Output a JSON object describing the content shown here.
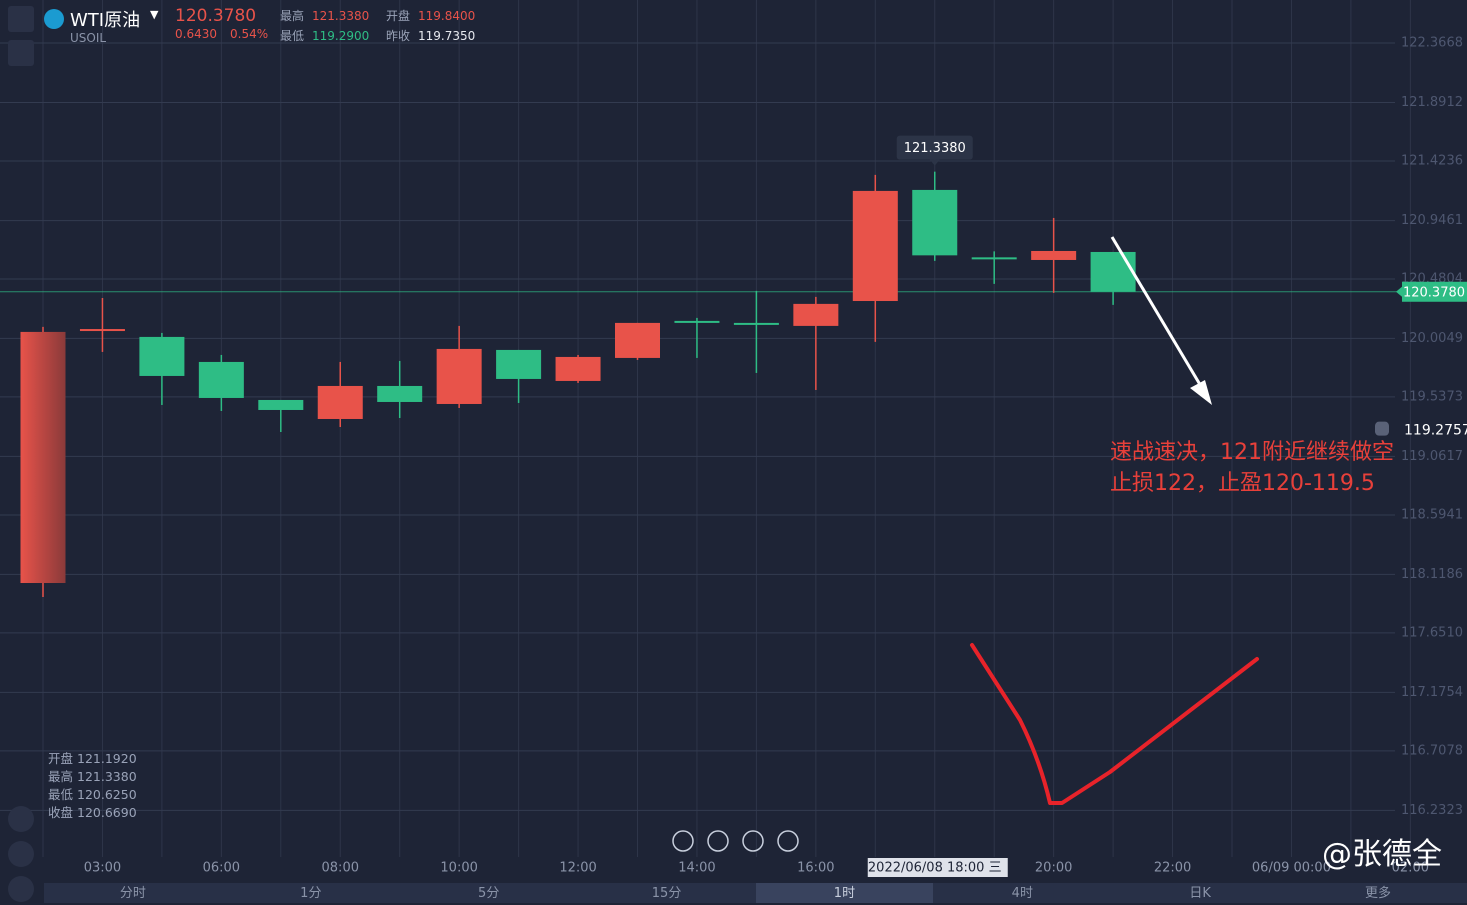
{
  "header": {
    "symbol": "WTI原油",
    "code": "USOIL",
    "price": "120.3780",
    "change": "0.6430",
    "change_pct": "0.54%",
    "stats": [
      {
        "label": "最高",
        "value": "121.3380"
      },
      {
        "label": "开盘",
        "value": "119.8400"
      },
      {
        "label": "最低",
        "value": "119.2900"
      },
      {
        "label": "昨收",
        "value": "119.7350"
      }
    ]
  },
  "chart_data": {
    "type": "candlestick",
    "categories": [
      null,
      "03:00",
      null,
      "06:00",
      null,
      "08:00",
      null,
      "10:00",
      null,
      "12:00",
      null,
      "14:00",
      null,
      "16:00",
      null,
      "2022/06/08 18:00 三",
      null,
      "20:00",
      null,
      "22:00",
      null,
      "06/09 00:00",
      null,
      "02:00"
    ],
    "open": [
      118.05,
      120.08,
      120.017,
      119.817,
      119.513,
      119.361,
      119.625,
      119.481,
      119.913,
      119.665,
      119.849,
      120.145,
      120.129,
      120.105,
      120.304,
      121.192,
      120.653,
      120.632,
      120.696,
      null,
      null,
      null,
      null,
      null
    ],
    "high": [
      120.097,
      120.328,
      120.049,
      119.873,
      119.513,
      119.817,
      119.825,
      120.105,
      119.913,
      119.873,
      120.129,
      120.169,
      120.385,
      120.337,
      121.312,
      121.338,
      120.701,
      120.968,
      120.696,
      null,
      null,
      null,
      null,
      null
    ],
    "low": [
      117.938,
      119.897,
      119.473,
      119.425,
      119.257,
      119.297,
      119.369,
      119.449,
      119.489,
      119.649,
      119.833,
      119.849,
      119.729,
      119.593,
      119.977,
      120.625,
      120.441,
      120.369,
      120.273,
      null,
      null,
      null,
      null,
      null
    ],
    "close": [
      120.057,
      120.08,
      119.705,
      119.529,
      119.433,
      119.625,
      119.497,
      119.921,
      119.681,
      119.857,
      120.129,
      120.137,
      120.121,
      120.281,
      121.184,
      120.669,
      120.645,
      120.704,
      120.378,
      null,
      null,
      null,
      null,
      null
    ],
    "up_color": "#e8534a",
    "down_color": "#2ebd85",
    "ylim": [
      115.86,
      122.71
    ],
    "yticks": [
      122.3668,
      121.8912,
      121.4236,
      120.9461,
      120.4804,
      120.0049,
      119.5373,
      119.0617,
      118.5941,
      118.1186,
      {
        "value": 117.651,
        "label": "117.6510"
      },
      117.1754,
      116.7078,
      116.2323
    ],
    "grid": true,
    "last_price": {
      "value": 120.378,
      "label": "120.3780"
    },
    "alert_price": 119.2757,
    "high_marker": {
      "value": 121.338,
      "label": "121.3380"
    },
    "annotations": [
      "速战速决，121附近继续做空",
      "止损122，止盈120-119.5"
    ]
  },
  "info_panel": [
    {
      "label": "开盘",
      "value": "121.1920"
    },
    {
      "label": "最高",
      "value": "121.3380"
    },
    {
      "label": "最低",
      "value": "120.6250"
    },
    {
      "label": "收盘",
      "value": "120.6690"
    }
  ],
  "tabs": [
    "分时",
    "1分",
    "5分",
    "15分",
    "1时",
    "4时",
    "日K",
    "更多"
  ],
  "active_tab": 4,
  "watermark": "@张德全"
}
